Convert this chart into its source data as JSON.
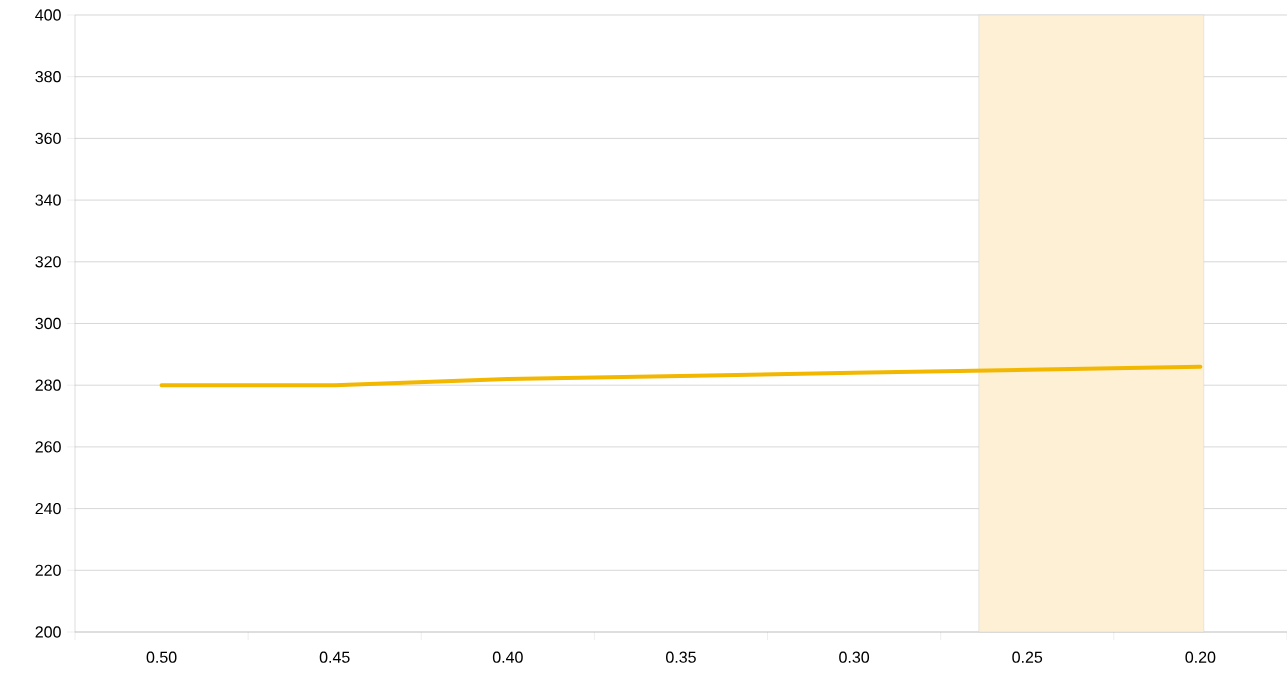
{
  "chart_data": {
    "type": "line",
    "categories": [
      "0.50",
      "0.45",
      "0.40",
      "0.35",
      "0.30",
      "0.25",
      "0.20"
    ],
    "series": [
      {
        "color": "#f2b700",
        "values": [
          280,
          280,
          282,
          283,
          284,
          285,
          286
        ]
      }
    ],
    "ylim": [
      200,
      400
    ],
    "yticks": [
      200,
      220,
      240,
      260,
      280,
      300,
      320,
      340,
      360,
      380,
      400
    ],
    "grid": "y",
    "marker": "none",
    "line_style": "solid",
    "bands": [
      {
        "axis": "x",
        "from": "0.25",
        "to": "0.20",
        "color": "#fdf0d5"
      }
    ]
  }
}
